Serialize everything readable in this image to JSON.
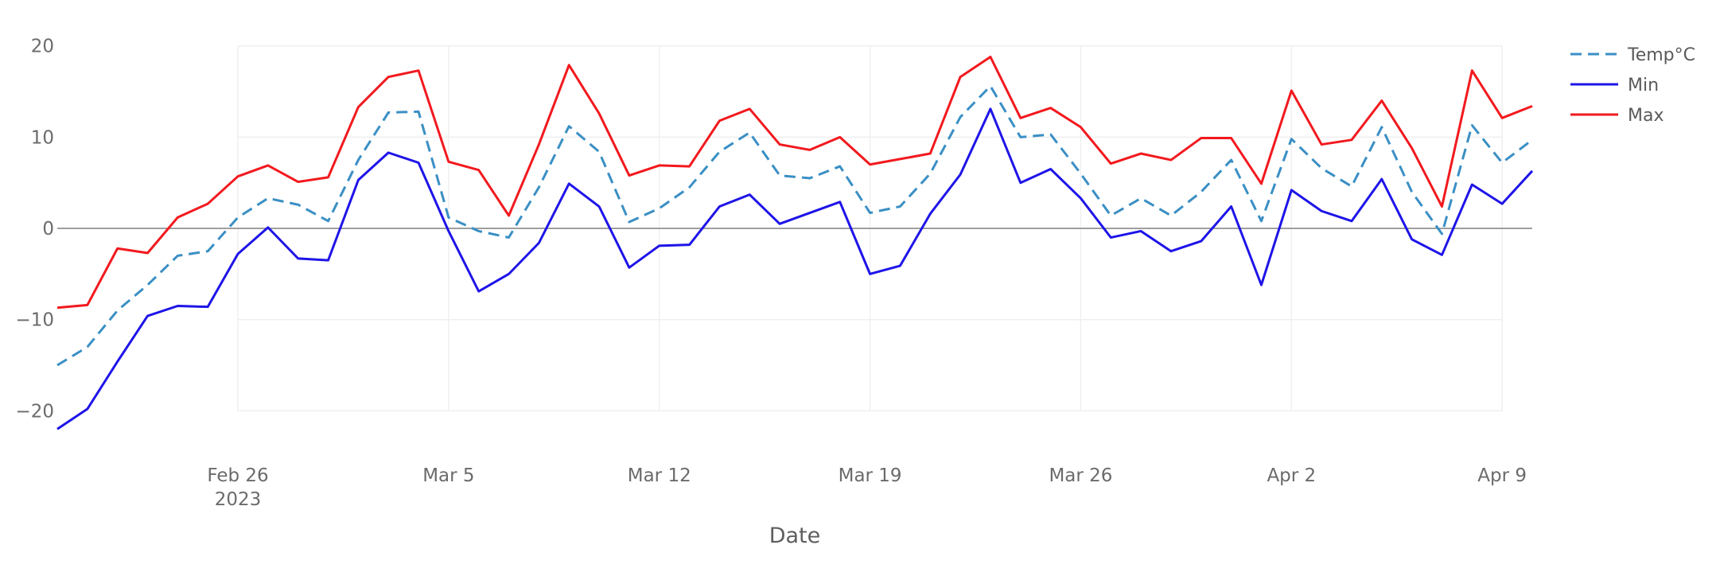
{
  "chart_data": {
    "type": "line",
    "xlabel": "Date",
    "ylabel": "",
    "ylim": [
      -22.5,
      20.5
    ],
    "yticks": [
      20,
      10,
      0,
      -10,
      -20
    ],
    "ytick_labels": [
      "20",
      "10",
      "0",
      "−10",
      "−20"
    ],
    "xlim": [
      "2023-02-20",
      "2023-04-10"
    ],
    "xticks": [
      {
        "date": "2023-02-26",
        "label": "Feb 26",
        "sublabel": "2023"
      },
      {
        "date": "2023-03-05",
        "label": "Mar 5",
        "sublabel": ""
      },
      {
        "date": "2023-03-12",
        "label": "Mar 12",
        "sublabel": ""
      },
      {
        "date": "2023-03-19",
        "label": "Mar 19",
        "sublabel": ""
      },
      {
        "date": "2023-03-26",
        "label": "Mar 26",
        "sublabel": ""
      },
      {
        "date": "2023-04-02",
        "label": "Apr 2",
        "sublabel": ""
      },
      {
        "date": "2023-04-09",
        "label": "Apr 9",
        "sublabel": ""
      }
    ],
    "grid": true,
    "legend_position": "top-right",
    "x": [
      "2023-02-20",
      "2023-02-21",
      "2023-02-22",
      "2023-02-23",
      "2023-02-24",
      "2023-02-25",
      "2023-02-26",
      "2023-02-27",
      "2023-02-28",
      "2023-03-01",
      "2023-03-02",
      "2023-03-03",
      "2023-03-04",
      "2023-03-05",
      "2023-03-06",
      "2023-03-07",
      "2023-03-08",
      "2023-03-09",
      "2023-03-10",
      "2023-03-11",
      "2023-03-12",
      "2023-03-13",
      "2023-03-14",
      "2023-03-15",
      "2023-03-16",
      "2023-03-17",
      "2023-03-18",
      "2023-03-19",
      "2023-03-20",
      "2023-03-21",
      "2023-03-22",
      "2023-03-23",
      "2023-03-24",
      "2023-03-25",
      "2023-03-26",
      "2023-03-27",
      "2023-03-28",
      "2023-03-29",
      "2023-03-30",
      "2023-03-31",
      "2023-04-01",
      "2023-04-02",
      "2023-04-03",
      "2023-04-04",
      "2023-04-05",
      "2023-04-06",
      "2023-04-07",
      "2023-04-08",
      "2023-04-09",
      "2023-04-10"
    ],
    "series": [
      {
        "name": "Temp°C",
        "color": "#3a8fc4",
        "dash": true,
        "values": [
          -15,
          -13,
          -9,
          -6.2,
          -3,
          -2.5,
          1.2,
          3.3,
          2.6,
          0.8,
          7.5,
          12.7,
          12.8,
          1.2,
          -0.3,
          -1,
          4.5,
          11.2,
          8.4,
          0.7,
          2.2,
          4.5,
          8.4,
          10.5,
          5.8,
          5.5,
          6.8,
          1.7,
          2.4,
          6,
          12.2,
          15.6,
          10,
          10.3,
          6,
          1.4,
          3.3,
          1.4,
          4,
          7.5,
          0.8,
          9.8,
          6.6,
          4.6,
          11.1,
          4,
          -0.6,
          11.3,
          7.2,
          9.7
        ]
      },
      {
        "name": "Min",
        "color": "#1e14e8",
        "dash": false,
        "values": [
          -22,
          -19.8,
          -14.6,
          -9.6,
          -8.5,
          -8.6,
          -2.8,
          0.1,
          -3.3,
          -3.5,
          5.3,
          8.3,
          7.2,
          -0.3,
          -6.9,
          -5,
          -1.6,
          4.9,
          2.4,
          -4.3,
          -1.9,
          -1.8,
          2.4,
          3.7,
          0.5,
          1.7,
          2.9,
          -5,
          -4.1,
          1.6,
          5.9,
          13.1,
          5,
          6.5,
          3.3,
          -1,
          -0.3,
          -2.5,
          -1.4,
          2.4,
          -6.2,
          4.2,
          1.9,
          0.8,
          5.4,
          -1.2,
          -2.9,
          4.8,
          2.7,
          6.3
        ]
      },
      {
        "name": "Max",
        "color": "#f2191e",
        "dash": false,
        "values": [
          -8.7,
          -8.4,
          -2.2,
          -2.7,
          1.2,
          2.7,
          5.7,
          6.9,
          5.1,
          5.6,
          13.3,
          16.6,
          17.3,
          7.3,
          6.4,
          1.4,
          9.2,
          17.9,
          12.6,
          5.8,
          6.9,
          6.8,
          11.8,
          13.1,
          9.2,
          8.6,
          10,
          7,
          7.6,
          8.2,
          16.6,
          18.8,
          12.1,
          13.2,
          11.1,
          7.1,
          8.2,
          7.5,
          9.9,
          9.9,
          4.9,
          15.1,
          9.2,
          9.7,
          14,
          8.8,
          2.4,
          17.3,
          12.1,
          13.4
        ]
      }
    ]
  }
}
